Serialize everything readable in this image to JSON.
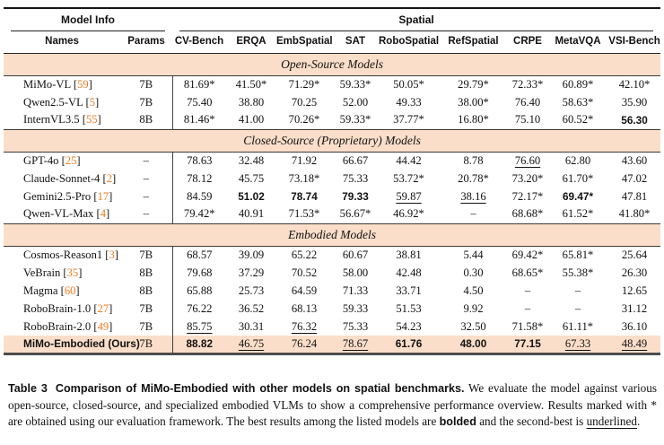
{
  "table": {
    "group_model_info": "Model Info",
    "group_spatial": "Spatial",
    "columns": [
      "Names",
      "Params",
      "CV-Bench",
      "ERQA",
      "EmbSpatial",
      "SAT",
      "RoboSpatial",
      "RefSpatial",
      "CRPE",
      "MetaVQA",
      "VSI-Bench"
    ],
    "sections": [
      {
        "title": "Open-Source Models",
        "rows": [
          {
            "name": "MiMo-VL",
            "cite": "59",
            "params": "7B",
            "values": [
              {
                "v": "81.69*"
              },
              {
                "v": "41.50*"
              },
              {
                "v": "71.29*"
              },
              {
                "v": "59.33*"
              },
              {
                "v": "50.05*"
              },
              {
                "v": "29.79*"
              },
              {
                "v": "72.33*"
              },
              {
                "v": "60.89*"
              },
              {
                "v": "42.10*"
              }
            ]
          },
          {
            "name": "Qwen2.5-VL",
            "cite": "5",
            "params": "7B",
            "values": [
              {
                "v": "75.40"
              },
              {
                "v": "38.80"
              },
              {
                "v": "70.25"
              },
              {
                "v": "52.00"
              },
              {
                "v": "49.33"
              },
              {
                "v": "38.00*"
              },
              {
                "v": "76.40"
              },
              {
                "v": "58.63*"
              },
              {
                "v": "35.90"
              }
            ]
          },
          {
            "name": "InternVL3.5",
            "cite": "55",
            "params": "8B",
            "values": [
              {
                "v": "81.46*"
              },
              {
                "v": "41.00"
              },
              {
                "v": "70.26*"
              },
              {
                "v": "59.33*"
              },
              {
                "v": "37.77*"
              },
              {
                "v": "16.80*"
              },
              {
                "v": "75.10"
              },
              {
                "v": "60.52*"
              },
              {
                "v": "56.30",
                "s": "b"
              }
            ]
          }
        ]
      },
      {
        "title": "Closed-Source (Proprietary) Models",
        "rows": [
          {
            "name": "GPT-4o",
            "cite": "25",
            "params": "–",
            "values": [
              {
                "v": "78.63"
              },
              {
                "v": "32.48"
              },
              {
                "v": "71.92"
              },
              {
                "v": "66.67"
              },
              {
                "v": "44.42"
              },
              {
                "v": "8.78"
              },
              {
                "v": "76.60",
                "s": "u"
              },
              {
                "v": "62.80"
              },
              {
                "v": "43.60"
              }
            ]
          },
          {
            "name": "Claude-Sonnet-4",
            "cite": "2",
            "params": "–",
            "values": [
              {
                "v": "78.12"
              },
              {
                "v": "45.75"
              },
              {
                "v": "73.18*"
              },
              {
                "v": "75.33"
              },
              {
                "v": "53.72*"
              },
              {
                "v": "20.78*"
              },
              {
                "v": "73.20*"
              },
              {
                "v": "61.70*"
              },
              {
                "v": "47.02"
              }
            ]
          },
          {
            "name": "Gemini2.5-Pro",
            "cite": "17",
            "params": "–",
            "values": [
              {
                "v": "84.59"
              },
              {
                "v": "51.02",
                "s": "b"
              },
              {
                "v": "78.74",
                "s": "b"
              },
              {
                "v": "79.33",
                "s": "b"
              },
              {
                "v": "59.87",
                "s": "u"
              },
              {
                "v": "38.16",
                "s": "u"
              },
              {
                "v": "72.17*"
              },
              {
                "v": "69.47*",
                "s": "b"
              },
              {
                "v": "47.81"
              }
            ]
          },
          {
            "name": "Qwen-VL-Max",
            "cite": "4",
            "params": "–",
            "values": [
              {
                "v": "79.42*"
              },
              {
                "v": "40.91"
              },
              {
                "v": "71.53*"
              },
              {
                "v": "56.67*"
              },
              {
                "v": "46.92*"
              },
              {
                "v": "–"
              },
              {
                "v": "68.68*"
              },
              {
                "v": "61.52*"
              },
              {
                "v": "41.80*"
              }
            ]
          }
        ]
      },
      {
        "title": "Embodied Models",
        "rows": [
          {
            "name": "Cosmos-Reason1",
            "cite": "3",
            "params": "7B",
            "values": [
              {
                "v": "68.57"
              },
              {
                "v": "39.09"
              },
              {
                "v": "65.22"
              },
              {
                "v": "60.67"
              },
              {
                "v": "38.81"
              },
              {
                "v": "5.44"
              },
              {
                "v": "69.42*"
              },
              {
                "v": "65.81*"
              },
              {
                "v": "25.64"
              }
            ]
          },
          {
            "name": "VeBrain",
            "cite": "35",
            "params": "8B",
            "values": [
              {
                "v": "79.68"
              },
              {
                "v": "37.29"
              },
              {
                "v": "70.52"
              },
              {
                "v": "58.00"
              },
              {
                "v": "42.48"
              },
              {
                "v": "0.30"
              },
              {
                "v": "68.65*"
              },
              {
                "v": "55.38*"
              },
              {
                "v": "26.30"
              }
            ]
          },
          {
            "name": "Magma",
            "cite": "60",
            "params": "8B",
            "values": [
              {
                "v": "65.88"
              },
              {
                "v": "25.73"
              },
              {
                "v": "64.59"
              },
              {
                "v": "71.33"
              },
              {
                "v": "33.71"
              },
              {
                "v": "4.50"
              },
              {
                "v": "–"
              },
              {
                "v": "–"
              },
              {
                "v": "12.65"
              }
            ]
          },
          {
            "name": "RoboBrain-1.0",
            "cite": "27",
            "params": "7B",
            "values": [
              {
                "v": "76.22"
              },
              {
                "v": "36.52"
              },
              {
                "v": "68.13"
              },
              {
                "v": "59.33"
              },
              {
                "v": "51.53"
              },
              {
                "v": "9.92"
              },
              {
                "v": "–"
              },
              {
                "v": "–"
              },
              {
                "v": "31.12"
              }
            ]
          },
          {
            "name": "RoboBrain-2.0",
            "cite": "49",
            "params": "7B",
            "values": [
              {
                "v": "85.75",
                "s": "u"
              },
              {
                "v": "30.31"
              },
              {
                "v": "76.32",
                "s": "u"
              },
              {
                "v": "75.33"
              },
              {
                "v": "54.23"
              },
              {
                "v": "32.50"
              },
              {
                "v": "71.58*"
              },
              {
                "v": "61.11*"
              },
              {
                "v": "36.10"
              }
            ]
          },
          {
            "name": "MiMo-Embodied (Ours)",
            "params": "7B",
            "highlight": true,
            "bold_name": true,
            "values": [
              {
                "v": "88.82",
                "s": "b"
              },
              {
                "v": "46.75",
                "s": "u"
              },
              {
                "v": "76.24"
              },
              {
                "v": "78.67",
                "s": "u"
              },
              {
                "v": "61.76",
                "s": "b"
              },
              {
                "v": "48.00",
                "s": "b"
              },
              {
                "v": "77.15",
                "s": "b"
              },
              {
                "v": "67.33",
                "s": "u"
              },
              {
                "v": "48.49",
                "s": "u"
              }
            ]
          }
        ]
      }
    ]
  },
  "caption": {
    "label": "Table 3",
    "title": "Comparison of MiMo-Embodied with other models on spatial benchmarks.",
    "body1": " We evaluate the model against various open-source, closed-source, and specialized embodied VLMs to show a comprehensive performance overview. Results marked with * are obtained using our evaluation framework. The best results among the listed models are ",
    "bold_word": "bolded",
    "body2": " and the second-best is ",
    "underline_word": "underlined",
    "period": "."
  },
  "colors": {
    "band_bg": "#FBDEC9",
    "citation": "#EE7B1E"
  }
}
